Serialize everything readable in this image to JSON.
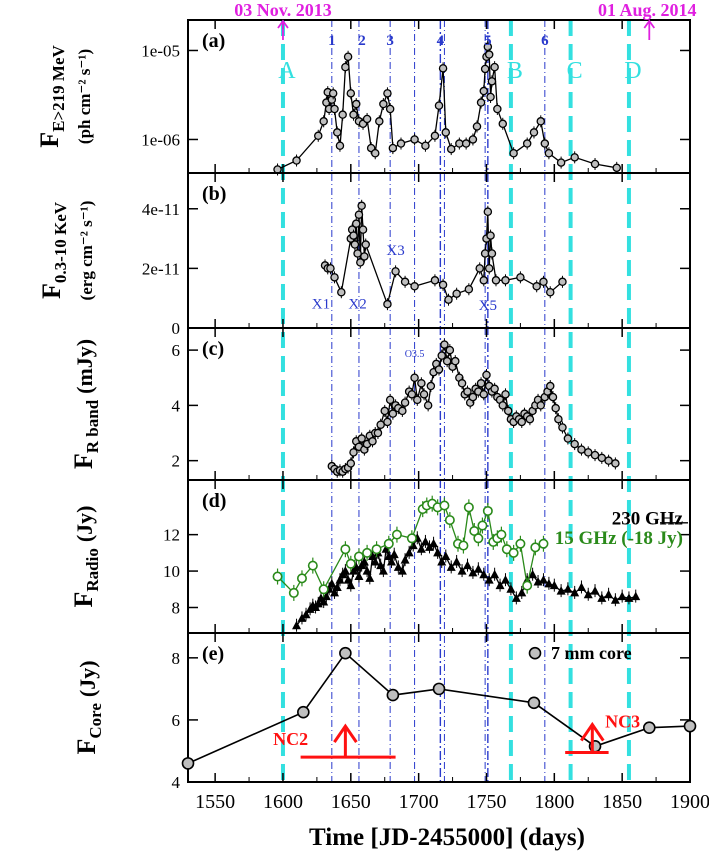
{
  "chart_data": {
    "type": "line",
    "xlabel": "Time [JD-2455000] (days)",
    "xlim": [
      1530,
      1900
    ],
    "x_ticks": [
      1550,
      1600,
      1650,
      1700,
      1750,
      1800,
      1850,
      1900
    ],
    "top_dates": [
      {
        "label": "03 Nov. 2013",
        "x": 1600
      },
      {
        "label": "01 Aug. 2014",
        "x": 1870
      }
    ],
    "flare_lines": [
      {
        "label": "1",
        "x": 1636
      },
      {
        "label": "2",
        "x": 1656
      },
      {
        "label": "3",
        "x": 1679
      },
      {
        "label": "4",
        "x": 1716
      },
      {
        "label": "5",
        "x": 1751
      },
      {
        "label": "6",
        "x": 1793
      }
    ],
    "extra_lines": [
      1697,
      1719,
      1749
    ],
    "periods": [
      {
        "label": "A",
        "x": 1600
      },
      {
        "label": "B",
        "x": 1768
      },
      {
        "label": "C",
        "x": 1812
      },
      {
        "label": "D",
        "x": 1855
      }
    ],
    "colors": {
      "period": "#33e0e0",
      "flare": "#2a3acc",
      "date": "#e020e0",
      "radio15": "#2a8a1a",
      "knot": "#ff1111"
    },
    "panels": [
      {
        "id": "a",
        "tag": "(a)",
        "scale": "log",
        "ylim": [
          4.2e-07,
          2.2e-05
        ],
        "y_ticks": [
          {
            "v": 1e-05,
            "label": "1e-05"
          },
          {
            "v": 1e-06,
            "label": "1e-06"
          }
        ],
        "ylabel": "F",
        "ylabel_sub": "E>219 MeV",
        "ylabel_units": "(ph cm⁻² s⁻¹)",
        "series": [
          {
            "name": "gamma",
            "marker": "circle",
            "color": "#000000",
            "x": [
              1596,
              1610,
              1626,
              1630,
              1632,
              1633,
              1634,
              1636,
              1637,
              1638,
              1640,
              1642,
              1644,
              1646,
              1648,
              1650,
              1652,
              1654,
              1656,
              1659,
              1662,
              1665,
              1668,
              1671,
              1674,
              1677,
              1679,
              1681,
              1687,
              1697,
              1705,
              1712,
              1715,
              1718,
              1720,
              1724,
              1730,
              1735,
              1740,
              1743,
              1746,
              1748,
              1749,
              1750,
              1751,
              1752,
              1753,
              1754,
              1756,
              1758,
              1762,
              1770,
              1780,
              1785,
              1790,
              1793,
              1796,
              1805,
              1815,
              1830,
              1846
            ],
            "y": [
              4.6e-07,
              5.8e-07,
              1.1e-06,
              1.6e-06,
              2.6e-06,
              3.4e-06,
              2.2e-06,
              2.8e-06,
              3.3e-06,
              2.2e-06,
              1.2e-06,
              8.5e-07,
              1.9e-06,
              6.5e-06,
              8.5e-06,
              3.3e-06,
              1.9e-06,
              2.5e-06,
              1.6e-06,
              1.5e-06,
              1.7e-06,
              8e-07,
              7e-07,
              1.6e-06,
              2.5e-06,
              3.3e-06,
              2.2e-06,
              8e-07,
              9e-07,
              1e-06,
              8.5e-07,
              1.1e-06,
              2.4e-06,
              6.3e-06,
              1.2e-06,
              7.8e-07,
              9e-07,
              9e-07,
              1e-06,
              1.4e-06,
              2.6e-06,
              3.5e-06,
              6.2e-06,
              8.5e-06,
              1.1e-05,
              9e-06,
              3e-06,
              4.5e-06,
              6.5e-06,
              2.2e-06,
              1.5e-06,
              7e-07,
              9e-07,
              1.2e-06,
              1.6e-06,
              9e-07,
              7e-07,
              5.5e-07,
              6.3e-07,
              5.3e-07,
              4.8e-07
            ]
          }
        ]
      },
      {
        "id": "b",
        "tag": "(b)",
        "scale": "linear",
        "ylim": [
          0,
          5.2e-11
        ],
        "y_ticks": [
          {
            "v": 0,
            "label": "0"
          },
          {
            "v": 2e-11,
            "label": "2e-11"
          },
          {
            "v": 4e-11,
            "label": "4e-11"
          }
        ],
        "ylabel": "F",
        "ylabel_sub": "0.3-10 KeV",
        "ylabel_units": "(erg cm⁻² s⁻¹)",
        "annotations": [
          {
            "label": "X1",
            "x": 1628,
            "y": 6.5e-12
          },
          {
            "label": "X2",
            "x": 1655,
            "y": 6.5e-12
          },
          {
            "label": "X3",
            "x": 1683,
            "y": 2.45e-11
          },
          {
            "label": "X5",
            "x": 1751,
            "y": 6e-12
          }
        ],
        "series": [
          {
            "name": "xray",
            "marker": "circle",
            "color": "#000000",
            "x": [
              1631,
              1633,
              1635,
              1638,
              1643,
              1650,
              1651,
              1652,
              1653,
              1654,
              1655,
              1656,
              1657,
              1658,
              1659,
              1660,
              1661,
              1677,
              1683,
              1690,
              1697,
              1712,
              1718,
              1722,
              1728,
              1737,
              1745,
              1748,
              1749,
              1750,
              1751,
              1752,
              1753,
              1754,
              1757,
              1764,
              1775,
              1787,
              1792,
              1797,
              1806
            ],
            "y": [
              2.1e-11,
              2e-11,
              2e-11,
              1.7e-11,
              1.2e-11,
              3e-11,
              3.3e-11,
              3.1e-11,
              2.8e-11,
              3.5e-11,
              2.5e-11,
              3.8e-11,
              2.2e-11,
              4.1e-11,
              3.3e-11,
              2.4e-11,
              2.8e-11,
              8e-12,
              1.9e-11,
              1.55e-11,
              1.4e-11,
              1.6e-11,
              1.45e-11,
              9.5e-12,
              1.15e-11,
              1.3e-11,
              2e-11,
              1.6e-11,
              2.5e-11,
              3e-11,
              3.9e-11,
              2e-11,
              3.1e-11,
              2.5e-11,
              1.6e-11,
              1.6e-11,
              1.7e-11,
              1.4e-11,
              1.55e-11,
              1.2e-11,
              1.55e-11
            ]
          }
        ]
      },
      {
        "id": "c",
        "tag": "(c)",
        "scale": "linear",
        "ylim": [
          1.3,
          6.8
        ],
        "y_ticks": [
          {
            "v": 2,
            "label": "2"
          },
          {
            "v": 4,
            "label": "4"
          },
          {
            "v": 6,
            "label": "6"
          }
        ],
        "ylabel": "F",
        "ylabel_sub": "R band",
        "ylabel_units": "(mJy)",
        "annotations": [
          {
            "label": "O3.5",
            "x": 1697,
            "y": 5.75
          }
        ],
        "series": [
          {
            "name": "optical",
            "marker": "circle",
            "color": "#000000",
            "x": [
              1636,
              1638,
              1640,
              1642,
              1644,
              1646,
              1648,
              1650,
              1652,
              1654,
              1656,
              1658,
              1660,
              1662,
              1664,
              1666,
              1668,
              1670,
              1672,
              1675,
              1677,
              1679,
              1681,
              1683,
              1685,
              1688,
              1690,
              1693,
              1695,
              1697,
              1699,
              1702,
              1704,
              1707,
              1709,
              1711,
              1713,
              1715,
              1717,
              1719,
              1721,
              1723,
              1725,
              1727,
              1730,
              1732,
              1734,
              1736,
              1738,
              1740,
              1742,
              1744,
              1746,
              1748,
              1750,
              1752,
              1754,
              1756,
              1758,
              1760,
              1762,
              1764,
              1766,
              1768,
              1770,
              1772,
              1774,
              1776,
              1778,
              1780,
              1782,
              1784,
              1786,
              1788,
              1790,
              1793,
              1795,
              1797,
              1799,
              1801,
              1803,
              1806,
              1810,
              1815,
              1820,
              1825,
              1830,
              1835,
              1840,
              1845
            ],
            "y": [
              1.8,
              1.7,
              1.6,
              1.65,
              1.6,
              1.7,
              1.75,
              1.9,
              2.3,
              2.7,
              2.5,
              2.8,
              2.4,
              2.6,
              2.9,
              2.7,
              3.0,
              3.0,
              3.3,
              3.8,
              3.4,
              4.2,
              3.7,
              4.0,
              3.9,
              3.8,
              4.1,
              4.5,
              4.4,
              5.0,
              4.2,
              4.8,
              4.4,
              4.0,
              4.7,
              5.2,
              5.5,
              5.3,
              5.8,
              6.2,
              5.6,
              6.0,
              5.4,
              5.6,
              5.0,
              4.8,
              4.4,
              4.5,
              4.1,
              4.3,
              4.6,
              4.5,
              4.8,
              4.4,
              5.1,
              4.7,
              4.5,
              4.6,
              4.3,
              4.2,
              4.0,
              4.4,
              3.8,
              3.5,
              3.4,
              3.6,
              3.5,
              3.4,
              3.7,
              3.6,
              3.5,
              3.8,
              4.0,
              4.2,
              4.0,
              4.3,
              4.5,
              4.7,
              4.3,
              3.9,
              3.5,
              3.2,
              2.8,
              2.6,
              2.4,
              2.3,
              2.2,
              2.1,
              2.0,
              1.9
            ]
          }
        ]
      },
      {
        "id": "d",
        "tag": "(d)",
        "scale": "linear",
        "ylim": [
          6.6,
          15.0
        ],
        "y_ticks": [
          {
            "v": 8,
            "label": "8"
          },
          {
            "v": 10,
            "label": "10"
          },
          {
            "v": 12,
            "label": "12"
          }
        ],
        "ylabel": "F",
        "ylabel_sub": "Radio",
        "ylabel_units": "(Jy)",
        "series": [
          {
            "name": "230 GHz",
            "marker": "triangle",
            "color": "#000000",
            "x": [
              1610,
              1614,
              1617,
              1620,
              1622,
              1624,
              1626,
              1628,
              1630,
              1632,
              1634,
              1636,
              1638,
              1640,
              1642,
              1644,
              1646,
              1648,
              1650,
              1652,
              1654,
              1656,
              1658,
              1660,
              1662,
              1664,
              1666,
              1668,
              1670,
              1672,
              1674,
              1676,
              1678,
              1680,
              1682,
              1685,
              1688,
              1690,
              1693,
              1696,
              1699,
              1702,
              1705,
              1708,
              1711,
              1714,
              1717,
              1720,
              1724,
              1728,
              1732,
              1736,
              1740,
              1744,
              1748,
              1752,
              1756,
              1760,
              1764,
              1768,
              1772,
              1776,
              1780,
              1784,
              1788,
              1792,
              1796,
              1800,
              1805,
              1810,
              1815,
              1820,
              1825,
              1830,
              1835,
              1840,
              1845,
              1850,
              1855,
              1860
            ],
            "y": [
              7.0,
              7.4,
              7.6,
              7.9,
              8.1,
              8.0,
              8.2,
              8.5,
              8.3,
              8.6,
              9.0,
              9.3,
              8.8,
              9.1,
              9.5,
              9.8,
              10.0,
              9.5,
              9.2,
              10.0,
              10.2,
              9.7,
              10.3,
              10.5,
              10.0,
              9.6,
              10.8,
              10.5,
              11.0,
              10.3,
              10.0,
              11.2,
              10.8,
              10.5,
              10.9,
              10.2,
              10.0,
              10.6,
              11.0,
              11.4,
              11.8,
              11.2,
              11.6,
              11.3,
              11.5,
              11.0,
              10.5,
              10.8,
              10.2,
              10.5,
              10.0,
              10.3,
              9.9,
              10.1,
              9.8,
              9.5,
              9.8,
              9.2,
              9.5,
              9.0,
              8.5,
              8.8,
              9.5,
              9.8,
              9.4,
              9.5,
              9.3,
              9.2,
              8.9,
              9.0,
              8.8,
              9.1,
              8.7,
              8.9,
              8.5,
              8.7,
              8.4,
              8.6,
              8.5,
              8.6
            ]
          },
          {
            "name": "15 GHz (-18 Jy)",
            "marker": "circle-open",
            "color": "#2a8a1a",
            "x": [
              1596,
              1608,
              1614,
              1622,
              1630,
              1646,
              1650,
              1656,
              1662,
              1669,
              1678,
              1684,
              1695,
              1703,
              1706,
              1710,
              1714,
              1719,
              1723,
              1729,
              1733,
              1737,
              1741,
              1744,
              1747,
              1751,
              1755,
              1758,
              1761,
              1765,
              1770,
              1775,
              1780,
              1786,
              1792
            ],
            "y": [
              9.7,
              8.8,
              9.6,
              10.3,
              9.0,
              11.2,
              10.4,
              10.8,
              11.0,
              11.2,
              11.5,
              12.0,
              11.8,
              13.4,
              13.6,
              13.7,
              13.5,
              13.6,
              12.8,
              11.5,
              11.4,
              13.5,
              12.2,
              11.8,
              12.5,
              13.3,
              11.6,
              11.8,
              12.0,
              11.2,
              11.0,
              11.5,
              9.2,
              11.3,
              11.5
            ]
          }
        ],
        "legend": [
          {
            "label": "230 GHz",
            "color": "#000000"
          },
          {
            "label": "15 GHz (-18 Jy)",
            "color": "#2a8a1a"
          }
        ]
      },
      {
        "id": "e",
        "tag": "(e)",
        "scale": "linear",
        "ylim": [
          4.0,
          8.8
        ],
        "y_ticks": [
          {
            "v": 4,
            "label": "4"
          },
          {
            "v": 6,
            "label": "6"
          },
          {
            "v": 8,
            "label": "8"
          }
        ],
        "ylabel": "F",
        "ylabel_sub": "Core",
        "ylabel_units": "(Jy)",
        "legend": [
          {
            "label": "7 mm core",
            "color": "#000000"
          }
        ],
        "knots": [
          {
            "label": "NC2",
            "x": 1646,
            "x_from": 1613,
            "x_to": 1683,
            "y_bar": 4.8,
            "y_top": 5.8
          },
          {
            "label": "NC3",
            "x": 1828,
            "x_from": 1808,
            "x_to": 1840,
            "y_bar": 4.95,
            "y_top": 5.85
          }
        ],
        "series": [
          {
            "name": "7 mm core",
            "marker": "circle-gray",
            "color": "#000000",
            "x": [
              1530,
              1615,
              1646,
              1681,
              1715,
              1785,
              1830,
              1870,
              1900
            ],
            "y": [
              4.6,
              6.25,
              8.15,
              6.8,
              7.0,
              6.55,
              5.15,
              5.75,
              5.8
            ]
          }
        ]
      }
    ]
  }
}
